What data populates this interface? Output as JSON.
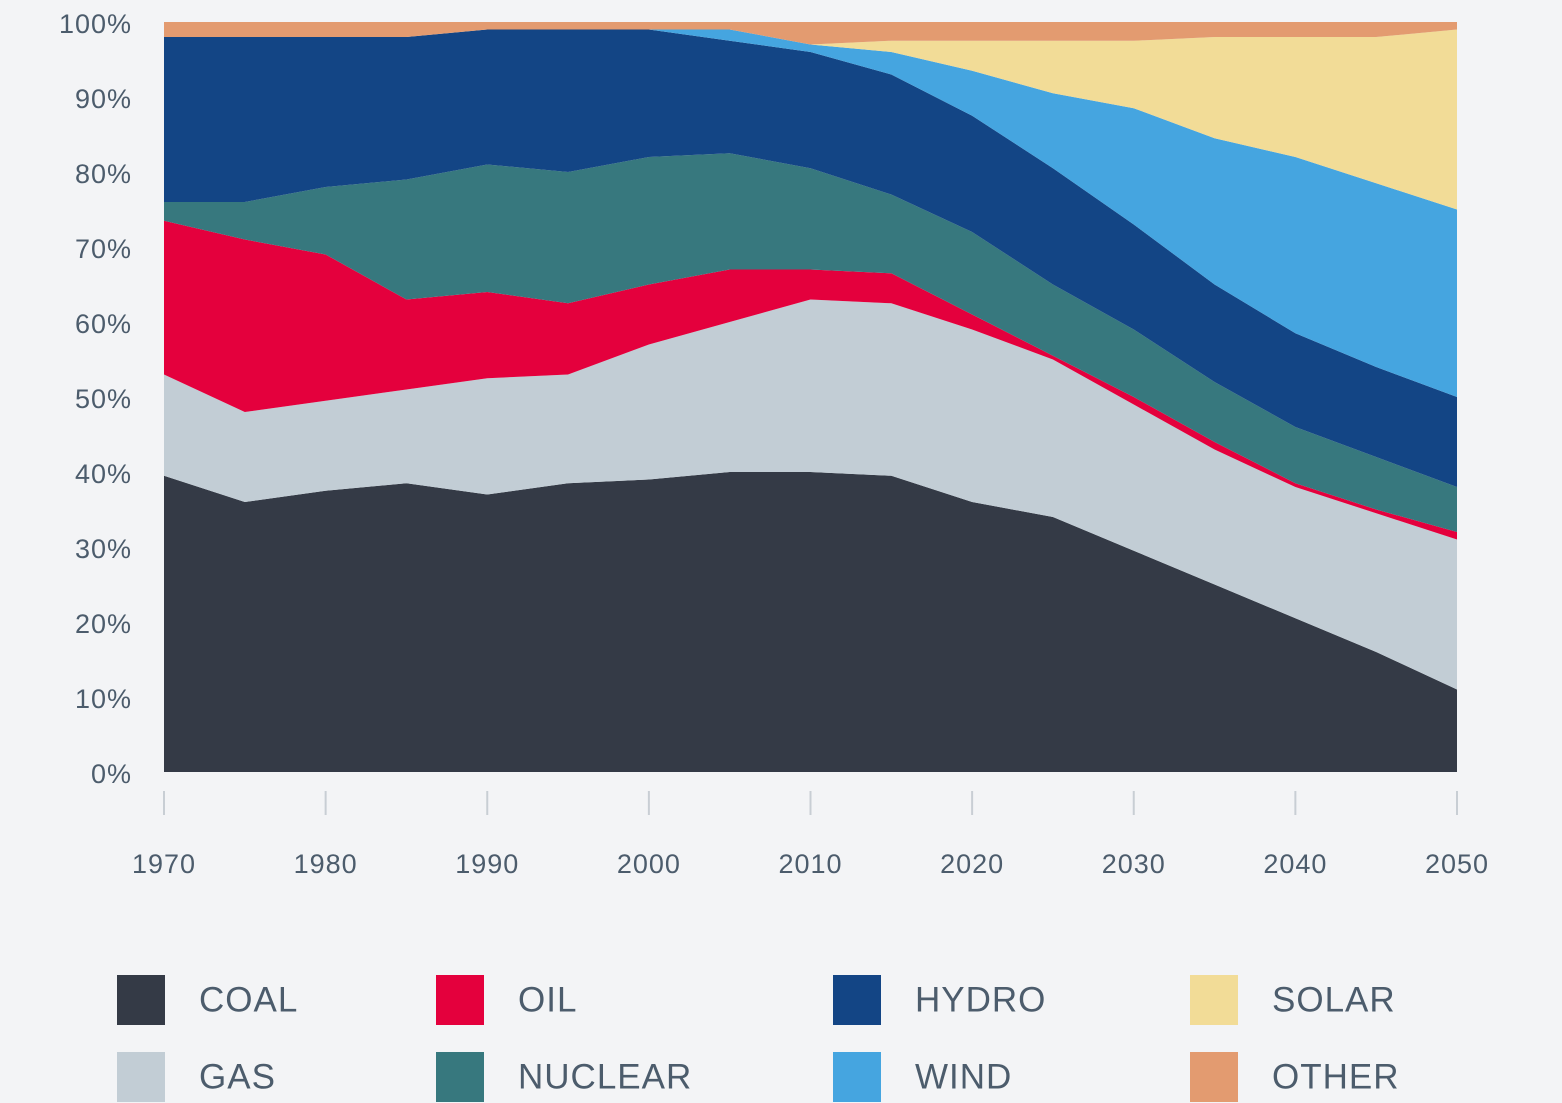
{
  "chart_data": {
    "type": "stacked_area",
    "x": [
      1970,
      1975,
      1980,
      1985,
      1990,
      1995,
      2000,
      2005,
      2010,
      2015,
      2020,
      2025,
      2030,
      2035,
      2040,
      2045,
      2050
    ],
    "series": [
      {
        "name": "COAL",
        "color": "#343a46",
        "values": [
          39.5,
          36,
          37.5,
          38.5,
          37,
          38.5,
          39,
          40,
          40,
          39.5,
          36,
          34,
          29.5,
          25,
          20.5,
          16,
          11
        ]
      },
      {
        "name": "GAS",
        "color": "#c2cdd5",
        "values": [
          13.5,
          12,
          12,
          12.5,
          15.5,
          14.5,
          18,
          20,
          23,
          23,
          23,
          21,
          19.5,
          18,
          17.5,
          18.5,
          20
        ]
      },
      {
        "name": "OIL",
        "color": "#e4003d",
        "values": [
          20.5,
          23,
          19.5,
          12,
          11.5,
          9.5,
          8,
          7,
          4,
          4,
          2,
          0.5,
          1,
          1,
          0.5,
          0.5,
          1
        ]
      },
      {
        "name": "NUCLEAR",
        "color": "#37787e",
        "values": [
          2.5,
          5,
          9,
          16,
          17,
          17.5,
          17,
          15.5,
          13.5,
          10.5,
          11,
          9.5,
          9,
          8,
          7.5,
          7,
          6
        ]
      },
      {
        "name": "HYDRO",
        "color": "#134585",
        "values": [
          22,
          22,
          20,
          19,
          18,
          19,
          17,
          15,
          15.5,
          16,
          15.5,
          15.5,
          14,
          13,
          12.5,
          12,
          12
        ]
      },
      {
        "name": "WIND",
        "color": "#45a5e0",
        "values": [
          0,
          0,
          0,
          0,
          0,
          0,
          0,
          1.5,
          1,
          3,
          6,
          10,
          15.5,
          19.5,
          23.5,
          24.5,
          25
        ]
      },
      {
        "name": "SOLAR",
        "color": "#f2dc97",
        "values": [
          0,
          0,
          0,
          0,
          0,
          0,
          0,
          0,
          0,
          1.5,
          4,
          7,
          9,
          13.5,
          16,
          19.5,
          24
        ]
      },
      {
        "name": "OTHER",
        "color": "#e39b70",
        "values": [
          2,
          2,
          2,
          2,
          1,
          1,
          1,
          1,
          3,
          2.5,
          2.5,
          2.5,
          2.5,
          2,
          2,
          2,
          1
        ]
      }
    ],
    "xlim": [
      1970,
      2050
    ],
    "xticks": [
      1970,
      1980,
      1990,
      2000,
      2010,
      2020,
      2030,
      2040,
      2050
    ],
    "ylim": [
      0,
      100
    ],
    "yticks": [
      {
        "value": 0,
        "label": "0%"
      },
      {
        "value": 10,
        "label": "10%"
      },
      {
        "value": 20,
        "label": "20%"
      },
      {
        "value": 30,
        "label": "30%"
      },
      {
        "value": 40,
        "label": "40%"
      },
      {
        "value": 50,
        "label": "50%"
      },
      {
        "value": 60,
        "label": "60%"
      },
      {
        "value": 70,
        "label": "70%"
      },
      {
        "value": 80,
        "label": "80%"
      },
      {
        "value": 90,
        "label": "90%"
      },
      {
        "value": 100,
        "label": "100%"
      }
    ]
  }
}
